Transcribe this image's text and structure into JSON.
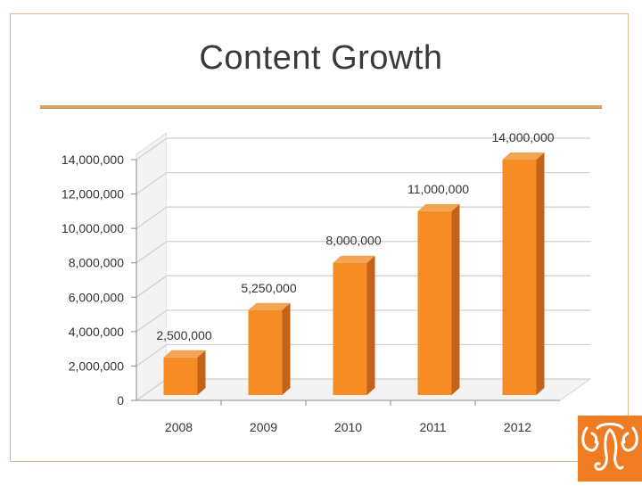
{
  "slide": {
    "title": "Content Growth"
  },
  "colors": {
    "bar_front": "#f78b24",
    "bar_side": "#c4621a",
    "bar_top": "#f3a453",
    "wall": "#f3f3f3",
    "grid": "#cfcfcf",
    "accent": "#ef7b22"
  },
  "logo": {
    "icon": "elephant-logo-icon"
  },
  "chart_data": {
    "type": "bar",
    "style": "3d-column",
    "title": "",
    "xlabel": "",
    "ylabel": "",
    "categories": [
      "2008",
      "2009",
      "2010",
      "2011",
      "2012"
    ],
    "values": [
      2500000,
      5250000,
      8000000,
      11000000,
      14000000
    ],
    "data_labels": [
      "2,500,000",
      "5,250,000",
      "8,000,000",
      "11,000,000",
      "14,000,000"
    ],
    "yticks": [
      0,
      2000000,
      4000000,
      6000000,
      8000000,
      10000000,
      12000000,
      14000000
    ],
    "ytick_labels": [
      "0",
      "2,000,000",
      "4,000,000",
      "6,000,000",
      "8,000,000",
      "10,000,000",
      "12,000,000",
      "14,000,000"
    ],
    "ylim": [
      0,
      14000000
    ],
    "grid": true,
    "legend": "none"
  }
}
